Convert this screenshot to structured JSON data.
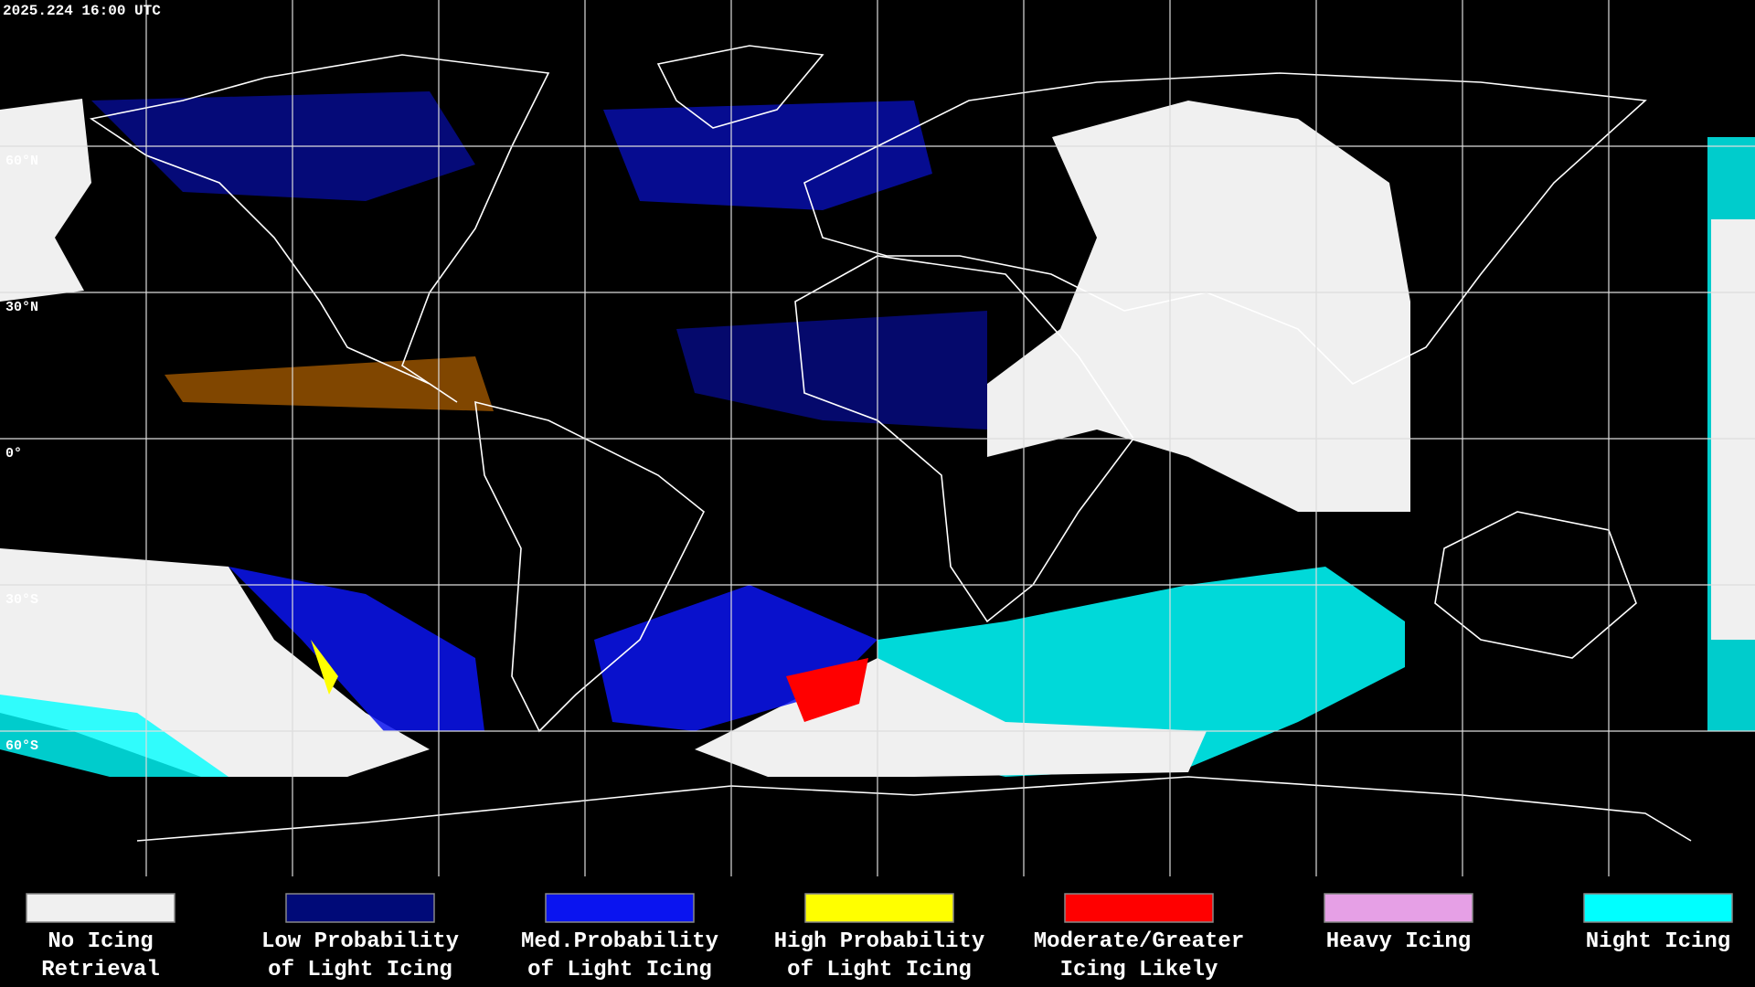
{
  "timestamp": "2025.224 16:00 UTC",
  "latitude_labels": [
    "60°N",
    "30°N",
    "0°",
    "30°S",
    "60°S"
  ],
  "legend": {
    "items": [
      {
        "label": [
          "No Icing",
          "Retrieval"
        ],
        "color": "#f0f0f0"
      },
      {
        "label": [
          "Low Probability",
          "of Light Icing"
        ],
        "color": "#000a78"
      },
      {
        "label": [
          "Med.Probability",
          "of Light Icing"
        ],
        "color": "#0a14f0"
      },
      {
        "label": [
          "High Probability",
          "of Light Icing"
        ],
        "color": "#ffff00"
      },
      {
        "label": [
          "Moderate/Greater",
          "Icing Likely"
        ],
        "color": "#ff0000"
      },
      {
        "label": [
          "Heavy Icing"
        ],
        "color": "#e6a0e6"
      },
      {
        "label": [
          "Night Icing"
        ],
        "color": "#00ffff"
      }
    ]
  }
}
